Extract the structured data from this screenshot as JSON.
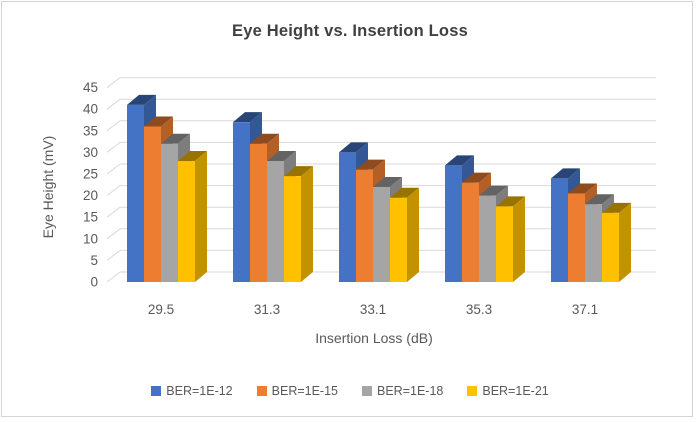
{
  "chart_data": {
    "type": "bar",
    "style": "3d-clustered-column",
    "title": "Eye Height vs. Insertion Loss",
    "xlabel": "Insertion Loss (dB)",
    "ylabel": "Eye Height (mV)",
    "categories": [
      "29.5",
      "31.3",
      "33.1",
      "35.3",
      "37.1"
    ],
    "series": [
      {
        "name": "BER=1E-12",
        "color": "#4472C4",
        "values": [
          41,
          37,
          30,
          27,
          24
        ]
      },
      {
        "name": "BER=1E-15",
        "color": "#ED7D31",
        "values": [
          36,
          32,
          26,
          23,
          20.5
        ]
      },
      {
        "name": "BER=1E-18",
        "color": "#A5A5A5",
        "values": [
          32,
          28,
          22,
          20,
          18
        ]
      },
      {
        "name": "BER=1E-21",
        "color": "#FFC000",
        "values": [
          28,
          24.5,
          19.5,
          17.5,
          16
        ]
      }
    ],
    "ylim": [
      0,
      45
    ],
    "yticks": [
      0,
      5,
      10,
      15,
      20,
      25,
      30,
      35,
      40,
      45
    ],
    "grid": true,
    "legend_position": "bottom",
    "colors": {
      "grid": "#D9D9D9",
      "axis_text": "#595959",
      "title_text": "#404040",
      "background": "#FFFFFF",
      "border": "#D4D4D4"
    }
  }
}
